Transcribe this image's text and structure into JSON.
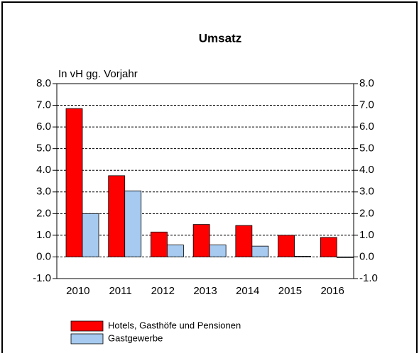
{
  "chart_data": {
    "type": "bar",
    "title": "Umsatz",
    "y_label": "In vH gg. Vorjahr",
    "categories": [
      "2010",
      "2011",
      "2012",
      "2013",
      "2014",
      "2015",
      "2016"
    ],
    "series": [
      {
        "name": "Hotels, Gasthöfe und Pensionen",
        "color": "#ff0000",
        "values": [
          6.85,
          3.75,
          1.15,
          1.5,
          1.45,
          1.0,
          0.9
        ]
      },
      {
        "name": "Gastgewerbe",
        "color": "#a6caf0",
        "values": [
          2.0,
          3.05,
          0.55,
          0.55,
          0.5,
          0.03,
          -0.03
        ]
      }
    ],
    "ylim": [
      -1,
      8
    ],
    "yticks": [
      {
        "value": -1,
        "label": "-1.0"
      },
      {
        "value": 0,
        "label": "0.0"
      },
      {
        "value": 1,
        "label": "1.0"
      },
      {
        "value": 2,
        "label": "2.0"
      },
      {
        "value": 3,
        "label": "3.0"
      },
      {
        "value": 4,
        "label": "4.0"
      },
      {
        "value": 5,
        "label": "5.0"
      },
      {
        "value": 6,
        "label": "6.0"
      },
      {
        "value": 7,
        "label": "7.0"
      },
      {
        "value": 8,
        "label": "8.0"
      }
    ],
    "y2lim": [
      -1,
      8
    ],
    "y2ticks": [
      {
        "value": -1,
        "label": "-1.0"
      },
      {
        "value": 0,
        "label": "0.0"
      },
      {
        "value": 1,
        "label": "1.0"
      },
      {
        "value": 2,
        "label": "2.0"
      },
      {
        "value": 3,
        "label": "3.0"
      },
      {
        "value": 4,
        "label": "4.0"
      },
      {
        "value": 5,
        "label": "5.0"
      },
      {
        "value": 6,
        "label": "6.0"
      },
      {
        "value": 7,
        "label": "7.0"
      },
      {
        "value": 8,
        "label": "8.0"
      }
    ],
    "grid": true
  }
}
